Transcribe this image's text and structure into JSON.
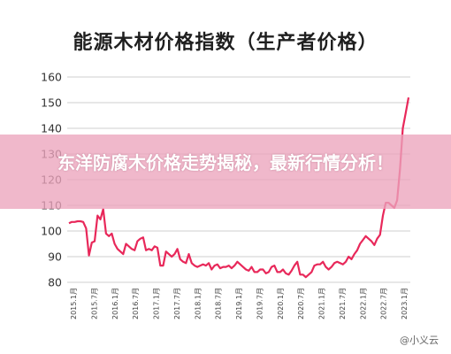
{
  "overlay": {
    "headline": "东洋防腐木价格走势揭秘，最新行情分析！"
  },
  "watermark": {
    "text": "@小义云"
  },
  "chart_data": {
    "type": "line",
    "title": "能源木材价格指数（生产者价格）",
    "xlabel": "",
    "ylabel": "",
    "ylim": [
      80,
      160
    ],
    "yticks": [
      80,
      90,
      100,
      110,
      120,
      130,
      140,
      150,
      160
    ],
    "grid": true,
    "line_color": "#e8285a",
    "grid_color": "#cfcfcf",
    "x_tick_labels": [
      "2015.1月",
      "2015.7月",
      "2016.1月",
      "2016.7月",
      "2017.1月",
      "2017.7月",
      "2018.1月",
      "2018.7月",
      "2019.1月",
      "2019.7月",
      "2020.1月",
      "2020.7月",
      "2021.1月",
      "2021.7月",
      "2022.1月",
      "2022.7月",
      "2023.1月"
    ],
    "series": [
      {
        "values": [
          103,
          103.5,
          103.5,
          103.8,
          103.8,
          103.5,
          101,
          90.5,
          95.5,
          96,
          106,
          104.5,
          108.5,
          99,
          98,
          99,
          95,
          93,
          92,
          91,
          95,
          94,
          93,
          92.5,
          96,
          97,
          97.5,
          92.5,
          93,
          92.5,
          94,
          93.5,
          86.5,
          86.5,
          92,
          91,
          90,
          91,
          93,
          89,
          88,
          87.5,
          91,
          87.5,
          86.5,
          86,
          86.5,
          87,
          86.5,
          87.5,
          85,
          86.5,
          87,
          85.5,
          86,
          86,
          86.5,
          85.5,
          86.5,
          88,
          87,
          86,
          85,
          84.5,
          86,
          84,
          84,
          85,
          85,
          83.5,
          84,
          86,
          86.5,
          84,
          84,
          85,
          83.5,
          83,
          84.5,
          86.5,
          88,
          83,
          83,
          82,
          83,
          84,
          86.5,
          87,
          87,
          88,
          86,
          85,
          86,
          87.5,
          88,
          87.5,
          87,
          88,
          90,
          89,
          91,
          92.5,
          95,
          96.5,
          98,
          97,
          96,
          94.5,
          97,
          98.5,
          106,
          111,
          111,
          110,
          109,
          112,
          124,
          140,
          146,
          152
        ]
      }
    ]
  }
}
